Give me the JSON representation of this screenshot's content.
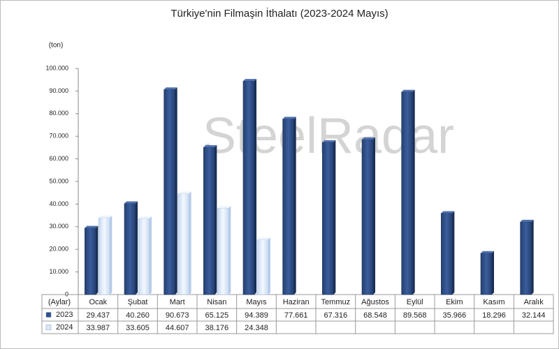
{
  "chart_data": {
    "type": "bar",
    "title": "Türkiye'nin Filmaşin İthalatı (2023-2024 Mayıs)",
    "y_label": "(ton)",
    "x_label": "(Aylar)",
    "watermark": "SteelRadar",
    "categories": [
      "Ocak",
      "Şubat",
      "Mart",
      "Nisan",
      "Mayıs",
      "Haziran",
      "Temmuz",
      "Ağustos",
      "Eylül",
      "Ekim",
      "Kasım",
      "Aralık"
    ],
    "series": [
      {
        "name": "2023",
        "color": "#2f4f8a",
        "values": [
          29437,
          40260,
          90673,
          65125,
          94389,
          77661,
          67316,
          68548,
          89568,
          35966,
          18296,
          32144
        ],
        "value_labels": [
          "29.437",
          "40.260",
          "90.673",
          "65.125",
          "94.389",
          "77.661",
          "67.316",
          "68.548",
          "89.568",
          "35.966",
          "18.296",
          "32.144"
        ]
      },
      {
        "name": "2024",
        "color": "#dde9f8",
        "values": [
          33987,
          33605,
          44607,
          38176,
          24348,
          null,
          null,
          null,
          null,
          null,
          null,
          null
        ],
        "value_labels": [
          "33.987",
          "33.605",
          "44.607",
          "38.176",
          "24.348",
          null,
          null,
          null,
          null,
          null,
          null,
          null
        ]
      }
    ],
    "ylim": [
      0,
      100000
    ],
    "yticks": [
      0,
      {
        "value": 10000,
        "label": "10.000"
      },
      {
        "value": 20000,
        "label": "20.000"
      },
      {
        "value": 30000,
        "label": "30.000"
      },
      {
        "value": 40000,
        "label": "40.000"
      },
      {
        "value": 50000,
        "label": "50.000"
      },
      {
        "value": 60000,
        "label": "60.000"
      },
      {
        "value": 70000,
        "label": "70.000"
      },
      {
        "value": 80000,
        "label": "80.000"
      },
      {
        "value": 90000,
        "label": "90.000"
      },
      {
        "value": 100000,
        "label": "100.000"
      }
    ],
    "grid": false
  }
}
